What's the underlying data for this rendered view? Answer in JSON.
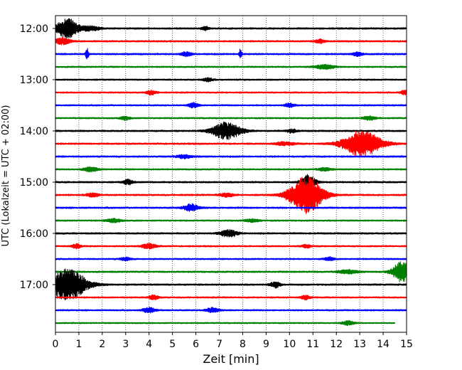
{
  "chart_data": {
    "type": "line",
    "chart_kind": "helicorder (seismogram drum plot)",
    "xlabel": "Zeit  [min]",
    "ylabel": "UTC (Lokalzeit = UTC + 02:00)",
    "xlim": [
      0,
      15
    ],
    "x_ticks": [
      0,
      1,
      2,
      3,
      4,
      5,
      6,
      7,
      8,
      9,
      10,
      11,
      12,
      13,
      14,
      15
    ],
    "x_tick_labels": [
      "0",
      "1",
      "2",
      "3",
      "4",
      "5",
      "6",
      "7",
      "8",
      "9",
      "10",
      "11",
      "12",
      "13",
      "14",
      "15"
    ],
    "y_tick_labels": [
      "12:00",
      "13:00",
      "14:00",
      "15:00",
      "16:00",
      "17:00"
    ],
    "minutes_per_line": 15,
    "grid": {
      "vertical_dotted": true
    },
    "line_colors": [
      "#000000",
      "#ff0000",
      "#0000ff",
      "#008000"
    ],
    "traces": [
      {
        "start": "12:00",
        "noise": 1.0,
        "events": [
          {
            "t": 0.5,
            "amp": 14,
            "width": 0.45
          },
          {
            "t": 1.5,
            "amp": 3,
            "width": 0.4
          },
          {
            "t": 6.4,
            "amp": 2.5,
            "width": 0.15
          }
        ]
      },
      {
        "start": "12:15",
        "noise": 1.0,
        "events": [
          {
            "t": 0.3,
            "amp": 5,
            "width": 0.3
          },
          {
            "t": 11.3,
            "amp": 2.5,
            "width": 0.2
          }
        ]
      },
      {
        "start": "12:30",
        "noise": 1.0,
        "events": [
          {
            "t": 1.35,
            "amp": 9,
            "width": 0.06
          },
          {
            "t": 5.6,
            "amp": 3,
            "width": 0.2
          },
          {
            "t": 7.9,
            "amp": 7,
            "width": 0.06
          },
          {
            "t": 12.9,
            "amp": 2.5,
            "width": 0.2
          }
        ]
      },
      {
        "start": "12:45",
        "noise": 0.9,
        "events": [
          {
            "t": 11.5,
            "amp": 3,
            "width": 0.4
          }
        ]
      },
      {
        "start": "13:00",
        "noise": 0.9,
        "events": [
          {
            "t": 6.5,
            "amp": 2.5,
            "width": 0.2
          }
        ]
      },
      {
        "start": "13:15",
        "noise": 0.9,
        "events": [
          {
            "t": 4.1,
            "amp": 3,
            "width": 0.2
          },
          {
            "t": 14.9,
            "amp": 3,
            "width": 0.15
          }
        ]
      },
      {
        "start": "13:30",
        "noise": 0.9,
        "events": [
          {
            "t": 5.9,
            "amp": 3.5,
            "width": 0.2
          },
          {
            "t": 10.0,
            "amp": 3,
            "width": 0.2
          }
        ]
      },
      {
        "start": "13:45",
        "noise": 0.9,
        "events": [
          {
            "t": 3.0,
            "amp": 2.5,
            "width": 0.2
          },
          {
            "t": 13.4,
            "amp": 3,
            "width": 0.25
          }
        ]
      },
      {
        "start": "14:00",
        "noise": 1.0,
        "events": [
          {
            "t": 7.3,
            "amp": 12,
            "width": 0.6
          },
          {
            "t": 10.1,
            "amp": 2.5,
            "width": 0.2
          }
        ]
      },
      {
        "start": "14:15",
        "noise": 1.0,
        "events": [
          {
            "t": 13.1,
            "amp": 18,
            "width": 0.8
          },
          {
            "t": 9.8,
            "amp": 2.5,
            "width": 0.4
          }
        ]
      },
      {
        "start": "14:30",
        "noise": 1.0,
        "events": [
          {
            "t": 5.5,
            "amp": 2.5,
            "width": 0.3
          }
        ]
      },
      {
        "start": "14:45",
        "noise": 0.9,
        "events": [
          {
            "t": 1.5,
            "amp": 3,
            "width": 0.3
          },
          {
            "t": 11.5,
            "amp": 2,
            "width": 0.3
          }
        ]
      },
      {
        "start": "15:00",
        "noise": 1.0,
        "events": [
          {
            "t": 3.1,
            "amp": 3.5,
            "width": 0.2
          },
          {
            "t": 10.8,
            "amp": 10,
            "width": 0.3
          }
        ]
      },
      {
        "start": "15:15",
        "noise": 1.0,
        "events": [
          {
            "t": 10.7,
            "amp": 26,
            "width": 0.7
          },
          {
            "t": 7.3,
            "amp": 2.5,
            "width": 0.3
          },
          {
            "t": 1.6,
            "amp": 3,
            "width": 0.25
          }
        ]
      },
      {
        "start": "15:30",
        "noise": 1.0,
        "events": [
          {
            "t": 5.8,
            "amp": 5,
            "width": 0.3
          }
        ]
      },
      {
        "start": "15:45",
        "noise": 0.9,
        "events": [
          {
            "t": 2.5,
            "amp": 2.5,
            "width": 0.3
          },
          {
            "t": 8.4,
            "amp": 2,
            "width": 0.3
          }
        ]
      },
      {
        "start": "16:00",
        "noise": 1.0,
        "events": [
          {
            "t": 7.4,
            "amp": 5,
            "width": 0.35
          }
        ]
      },
      {
        "start": "16:15",
        "noise": 0.9,
        "events": [
          {
            "t": 0.9,
            "amp": 3,
            "width": 0.2
          },
          {
            "t": 4.0,
            "amp": 3.5,
            "width": 0.3
          },
          {
            "t": 10.7,
            "amp": 2.5,
            "width": 0.2
          }
        ]
      },
      {
        "start": "16:30",
        "noise": 0.9,
        "events": [
          {
            "t": 3.0,
            "amp": 2.5,
            "width": 0.2
          },
          {
            "t": 11.7,
            "amp": 2.5,
            "width": 0.2
          }
        ]
      },
      {
        "start": "16:45",
        "noise": 1.0,
        "events": [
          {
            "t": 14.8,
            "amp": 14,
            "width": 0.4
          },
          {
            "t": 12.5,
            "amp": 2.5,
            "width": 0.4
          }
        ]
      },
      {
        "start": "17:00",
        "noise": 1.0,
        "events": [
          {
            "t": 0.5,
            "amp": 22,
            "width": 0.8
          },
          {
            "t": 9.4,
            "amp": 4,
            "width": 0.2
          }
        ]
      },
      {
        "start": "17:15",
        "noise": 0.9,
        "events": [
          {
            "t": 4.2,
            "amp": 3,
            "width": 0.2
          },
          {
            "t": 10.7,
            "amp": 3,
            "width": 0.2
          }
        ]
      },
      {
        "start": "17:30",
        "noise": 0.9,
        "events": [
          {
            "t": 4.0,
            "amp": 4,
            "width": 0.25
          },
          {
            "t": 6.7,
            "amp": 3.5,
            "width": 0.25
          }
        ]
      },
      {
        "start": "17:45",
        "noise": 0.8,
        "end_min": 14.5,
        "events": [
          {
            "t": 12.5,
            "amp": 3,
            "width": 0.25
          }
        ]
      }
    ]
  }
}
